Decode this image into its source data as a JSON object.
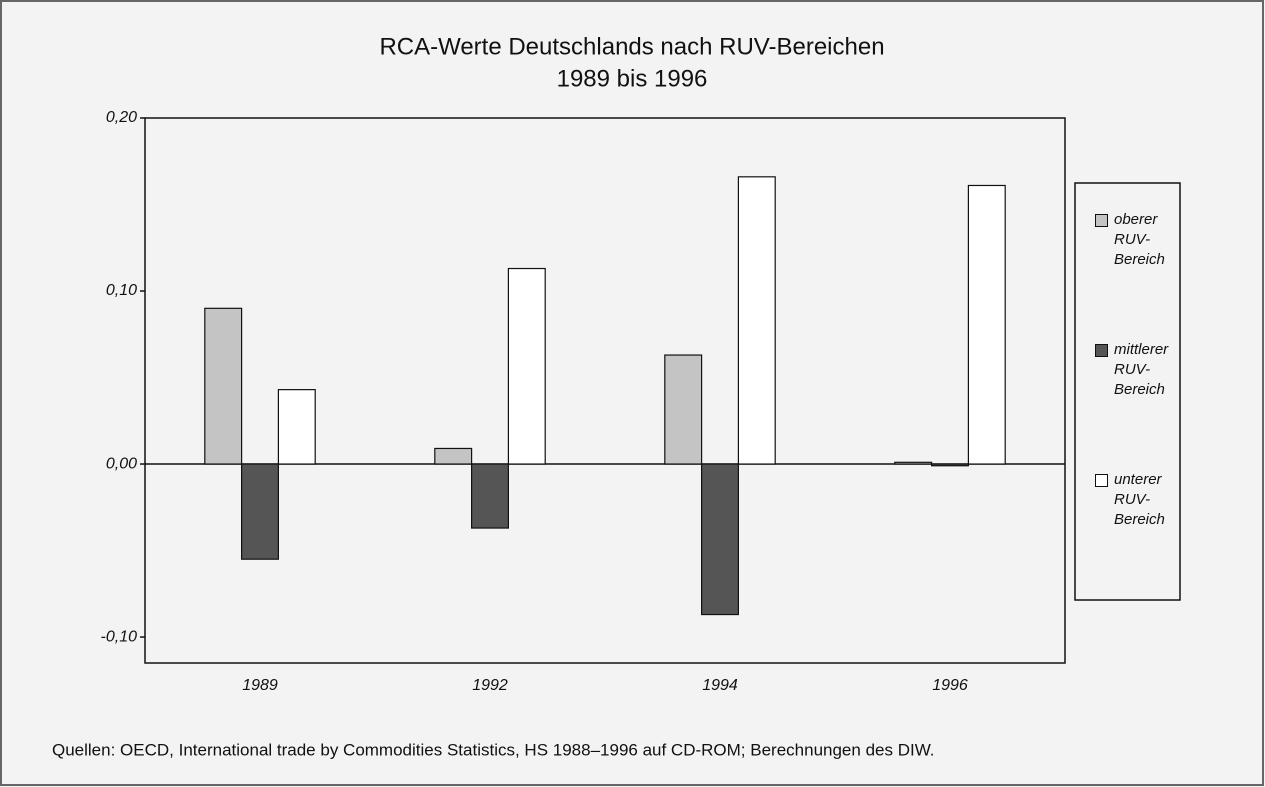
{
  "chart_data": {
    "type": "bar",
    "title": "RCA-Werte Deutschlands nach RUV-Bereichen",
    "subtitle": "1989 bis 1996",
    "categories": [
      "1989",
      "1992",
      "1994",
      "1996"
    ],
    "series": [
      {
        "name": "oberer RUV-Bereich",
        "color": "#c4c4c4",
        "values": [
          0.09,
          0.009,
          0.063,
          0.001
        ]
      },
      {
        "name": "mittlerer RUV-Bereich",
        "color": "#555555",
        "values": [
          -0.055,
          -0.037,
          -0.087,
          -0.001
        ]
      },
      {
        "name": "unterer RUV-Bereich",
        "color": "#ffffff",
        "values": [
          0.043,
          0.113,
          0.166,
          0.161
        ]
      }
    ],
    "ylim": [
      -0.115,
      0.2
    ],
    "yticks": [
      {
        "value": 0.2,
        "label": "0,20"
      },
      {
        "value": 0.1,
        "label": "0,10"
      },
      {
        "value": 0,
        "label": "0,00"
      },
      {
        "value": -0.1,
        "label": "-0,10"
      }
    ],
    "note": "Quellen: OECD, International trade by Commodities Statistics, HS 1988–1996 auf CD-ROM; Berechnungen des DIW.",
    "legend": "right"
  }
}
